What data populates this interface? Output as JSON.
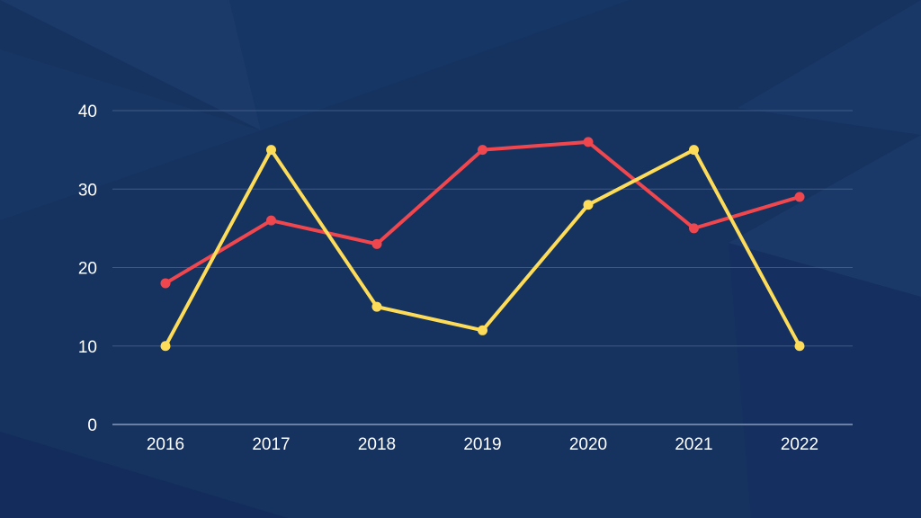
{
  "chart_data": {
    "type": "line",
    "title": "",
    "xlabel": "",
    "ylabel": "",
    "categories": [
      "2016",
      "2017",
      "2018",
      "2019",
      "2020",
      "2021",
      "2022"
    ],
    "ylim": [
      0,
      40
    ],
    "yticks": [
      0,
      10,
      20,
      30,
      40
    ],
    "grid": true,
    "legend": "none",
    "series": [
      {
        "color": "#f0474f",
        "values": [
          18,
          26,
          23,
          35,
          36,
          25,
          29
        ]
      },
      {
        "color": "#fddc5a",
        "values": [
          10,
          35,
          15,
          12,
          28,
          35,
          10
        ]
      }
    ]
  },
  "theme": {
    "background": "#16325f",
    "text": "#ffffff"
  }
}
